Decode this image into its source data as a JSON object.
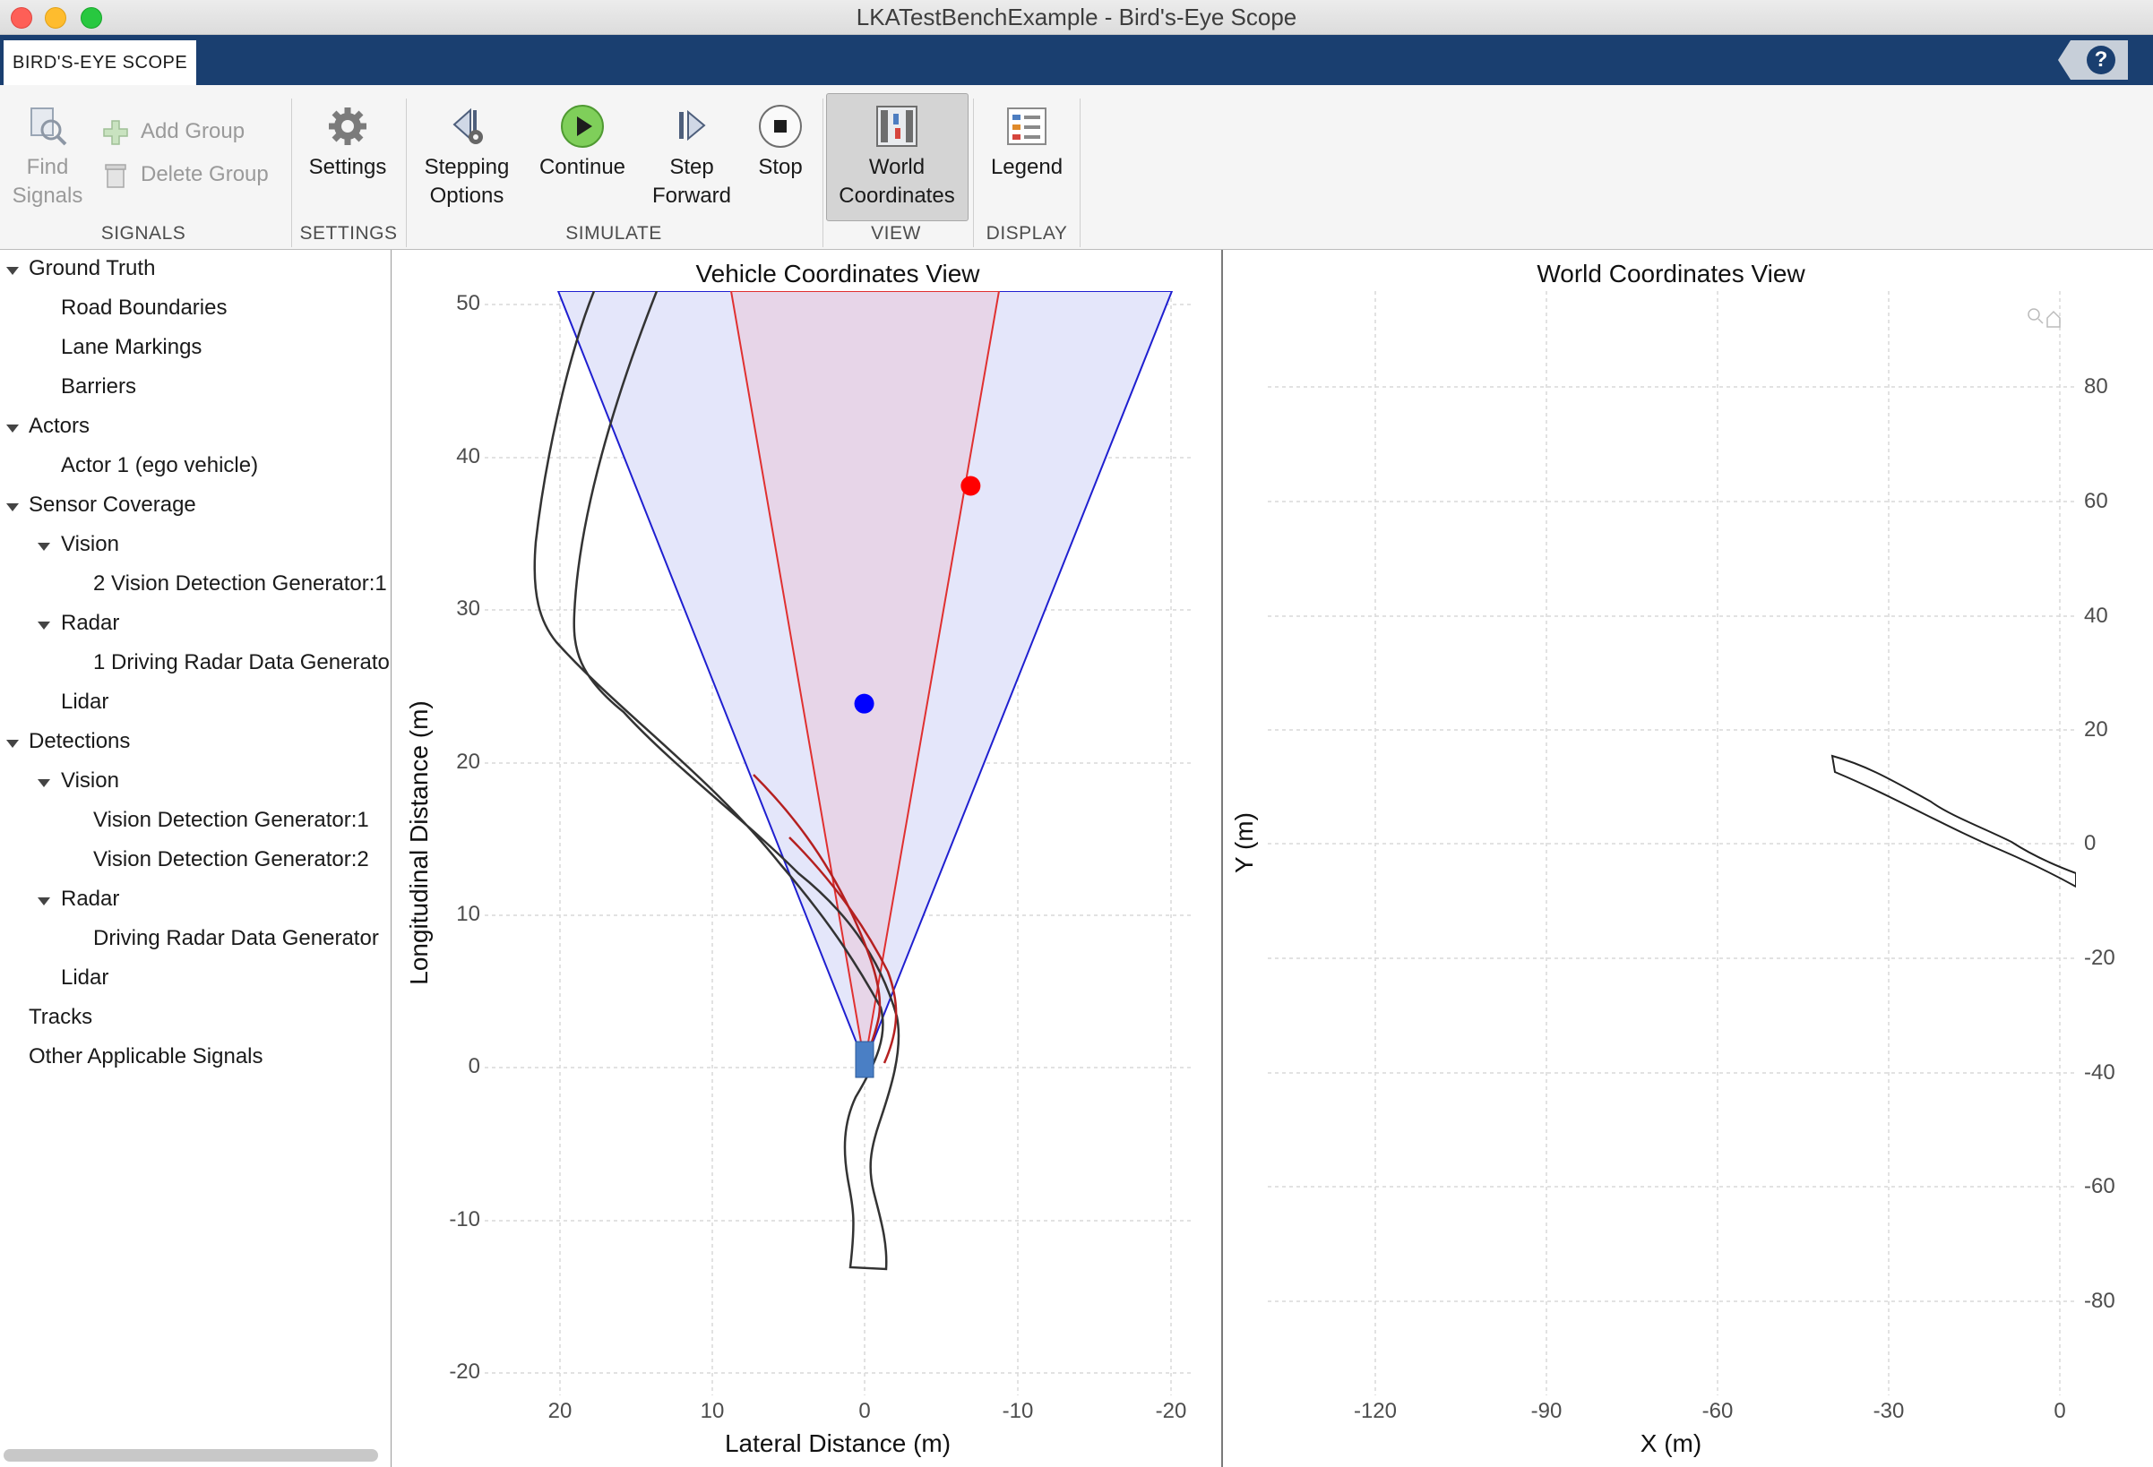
{
  "window": {
    "title": "LKATestBenchExample - Bird's-Eye Scope"
  },
  "tab": {
    "label": "BIRD'S-EYE SCOPE",
    "help_icon": "help-icon"
  },
  "toolstrip": {
    "signals": {
      "group_label": "SIGNALS",
      "find_signals": "Find\nSignals",
      "find_line1": "Find",
      "find_line2": "Signals",
      "add_group": "Add Group",
      "delete_group": "Delete Group"
    },
    "settings": {
      "group_label": "SETTINGS",
      "button": "Settings"
    },
    "simulate": {
      "group_label": "SIMULATE",
      "stepping_line1": "Stepping",
      "stepping_line2": "Options",
      "continue": "Continue",
      "step_line1": "Step",
      "step_line2": "Forward",
      "stop": "Stop"
    },
    "view": {
      "group_label": "VIEW",
      "world_line1": "World",
      "world_line2": "Coordinates",
      "selected": true
    },
    "display": {
      "group_label": "DISPLAY",
      "legend": "Legend"
    }
  },
  "tree": {
    "items": [
      {
        "label": "Ground Truth",
        "expanded": true
      },
      {
        "label": "Road Boundaries"
      },
      {
        "label": "Lane Markings"
      },
      {
        "label": "Barriers"
      },
      {
        "label": "Actors",
        "expanded": true
      },
      {
        "label": "Actor 1 (ego vehicle)"
      },
      {
        "label": "Sensor Coverage",
        "expanded": true
      },
      {
        "label": "Vision",
        "expanded": true
      },
      {
        "label": "2 Vision Detection Generator:1"
      },
      {
        "label": "Radar",
        "expanded": true
      },
      {
        "label": "1 Driving Radar Data Generato"
      },
      {
        "label": "Lidar"
      },
      {
        "label": "Detections",
        "expanded": true
      },
      {
        "label": "Vision",
        "expanded": true
      },
      {
        "label": "Vision Detection Generator:1"
      },
      {
        "label": "Vision Detection Generator:2"
      },
      {
        "label": "Radar",
        "expanded": true
      },
      {
        "label": "Driving Radar Data Generator"
      },
      {
        "label": "Lidar"
      },
      {
        "label": "Tracks"
      },
      {
        "label": "Other Applicable Signals"
      }
    ]
  },
  "vehicle_view": {
    "title": "Vehicle Coordinates View",
    "xlabel": "Lateral Distance (m)",
    "ylabel": "Longitudinal Distance (m)",
    "xticks": [
      "20",
      "10",
      "0",
      "-10",
      "-20"
    ],
    "yticks": [
      "50",
      "40",
      "30",
      "20",
      "10",
      "0",
      "-10",
      "-20"
    ],
    "radar_color": "#0000ff",
    "vision_color": "#ff0000"
  },
  "world_view": {
    "title": "World Coordinates View",
    "xlabel": "X (m)",
    "ylabel": "Y (m)",
    "xticks": [
      "-120",
      "-90",
      "-60",
      "-30",
      "0"
    ],
    "yticks": [
      "80",
      "60",
      "40",
      "20",
      "0",
      "-20",
      "-40",
      "-60",
      "-80"
    ]
  },
  "chart_data": [
    {
      "type": "scatter",
      "title": "Vehicle Coordinates View",
      "xlabel": "Lateral Distance (m)",
      "ylabel": "Longitudinal Distance (m)",
      "xlim": [
        25,
        -21
      ],
      "ylim": [
        -21,
        51
      ],
      "grid": true,
      "series": [
        {
          "name": "",
          "color": "#ff0000",
          "points": [
            [
              -6.5,
              38.3
            ]
          ]
        },
        {
          "name": "",
          "color": "#0000ff",
          "points": [
            [
              0.4,
              24.1
            ]
          ]
        }
      ]
    },
    {
      "type": "line",
      "title": "World Coordinates View",
      "xlabel": "X (m)",
      "ylabel": "Y (m)",
      "xlim": [
        -140,
        3
      ],
      "ylim": [
        -97,
        94
      ],
      "grid": true,
      "series": []
    }
  ]
}
